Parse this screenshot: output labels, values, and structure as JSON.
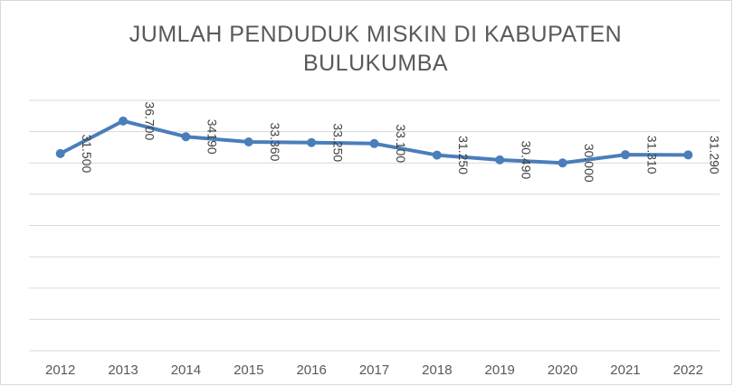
{
  "chart_data": {
    "type": "line",
    "title": "JUMLAH PENDUDUK MISKIN DI KABUPATEN BULUKUMBA",
    "categories": [
      "2012",
      "2013",
      "2014",
      "2015",
      "2016",
      "2017",
      "2018",
      "2019",
      "2020",
      "2021",
      "2022"
    ],
    "values": [
      31500,
      36700,
      34190,
      33360,
      33250,
      33100,
      31250,
      30490,
      30000,
      31310,
      31290
    ],
    "value_labels": [
      "31.500",
      "36.700",
      "34190",
      "33.360",
      "33.250",
      "33.100",
      "31.250",
      "30.490",
      "30.000",
      "31.310",
      "31.290"
    ],
    "color": "#4a7ebb",
    "ylim": [
      0,
      40000
    ],
    "yticks": [
      0,
      5000,
      10000,
      15000,
      20000,
      25000,
      30000,
      35000,
      40000
    ],
    "grid": true
  }
}
